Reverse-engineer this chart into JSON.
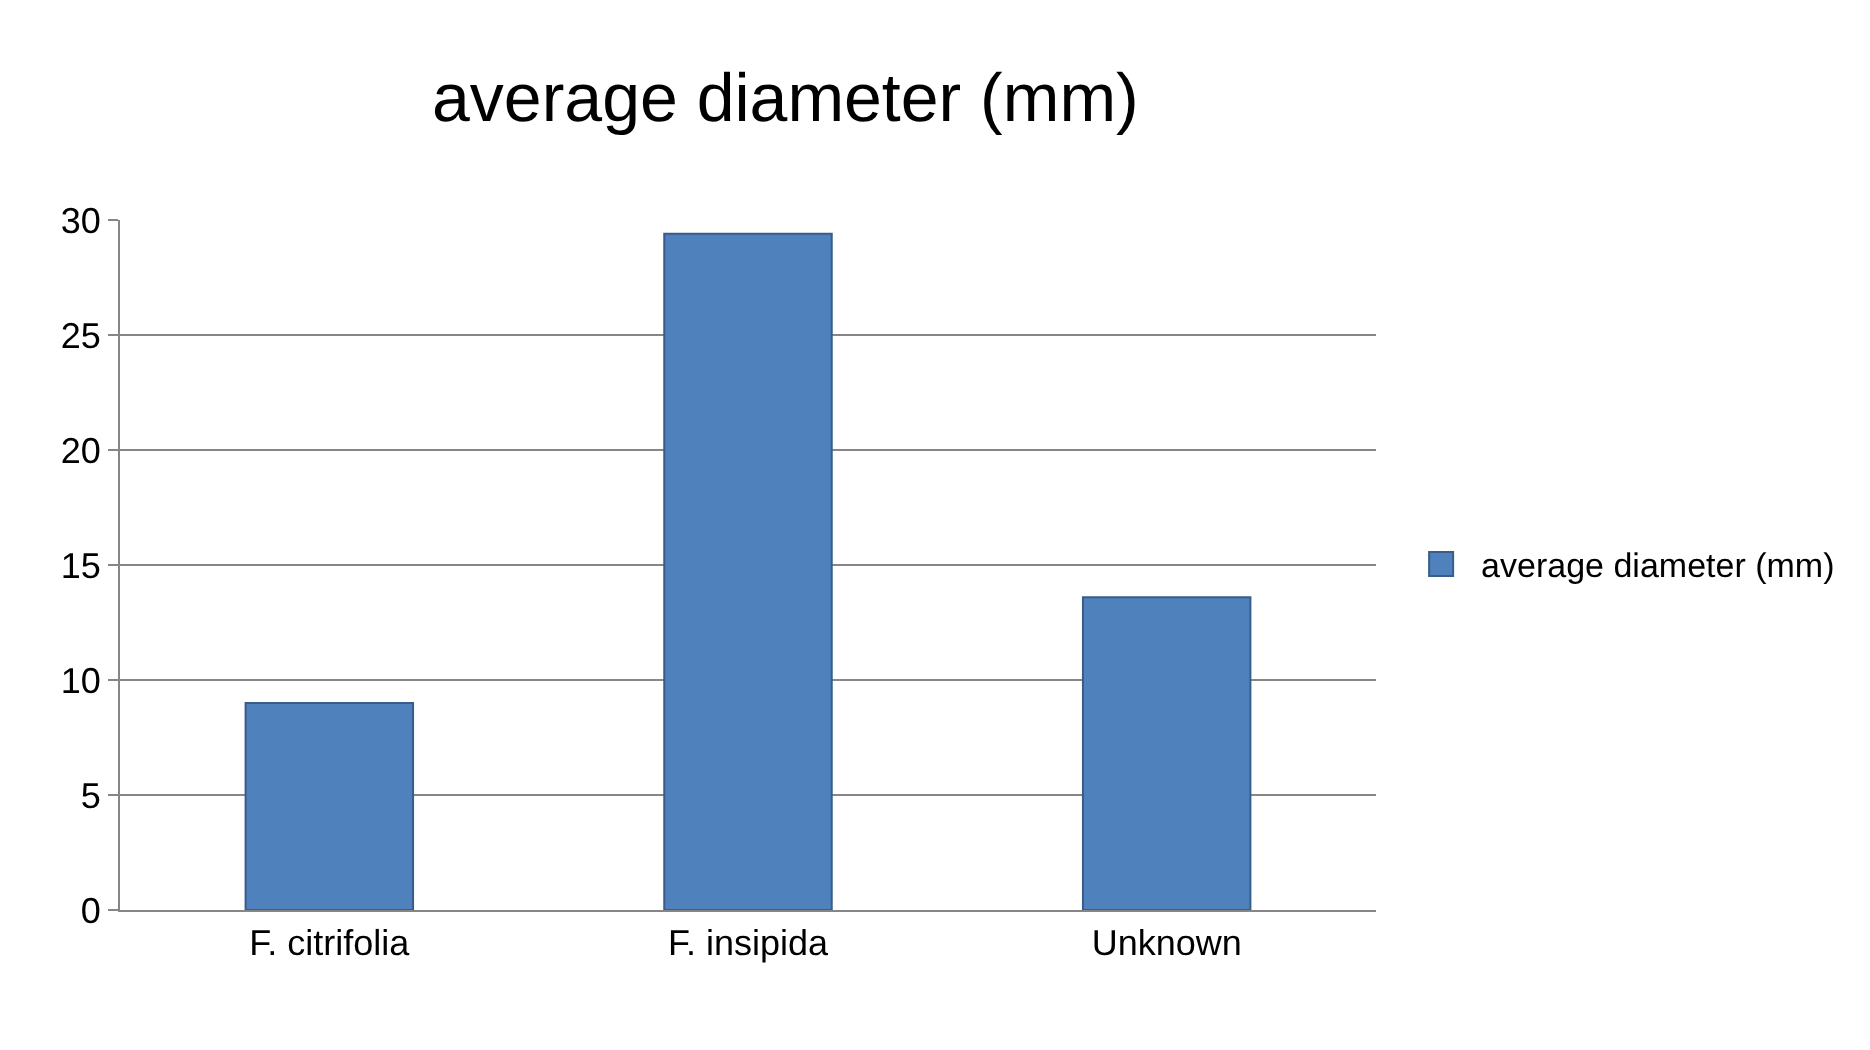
{
  "chart_data": {
    "type": "bar",
    "title": "average diameter (mm)",
    "categories": [
      "F. citrifolia",
      "F. insipida",
      "Unknown"
    ],
    "series": [
      {
        "name": "average diameter (mm)",
        "color": "#4f81bd",
        "values": [
          9,
          29.4,
          13.6
        ]
      }
    ],
    "ylim": [
      0,
      30
    ],
    "yticks": [
      0,
      5,
      10,
      15,
      20,
      25,
      30
    ],
    "grid": "y",
    "legend": "right"
  }
}
